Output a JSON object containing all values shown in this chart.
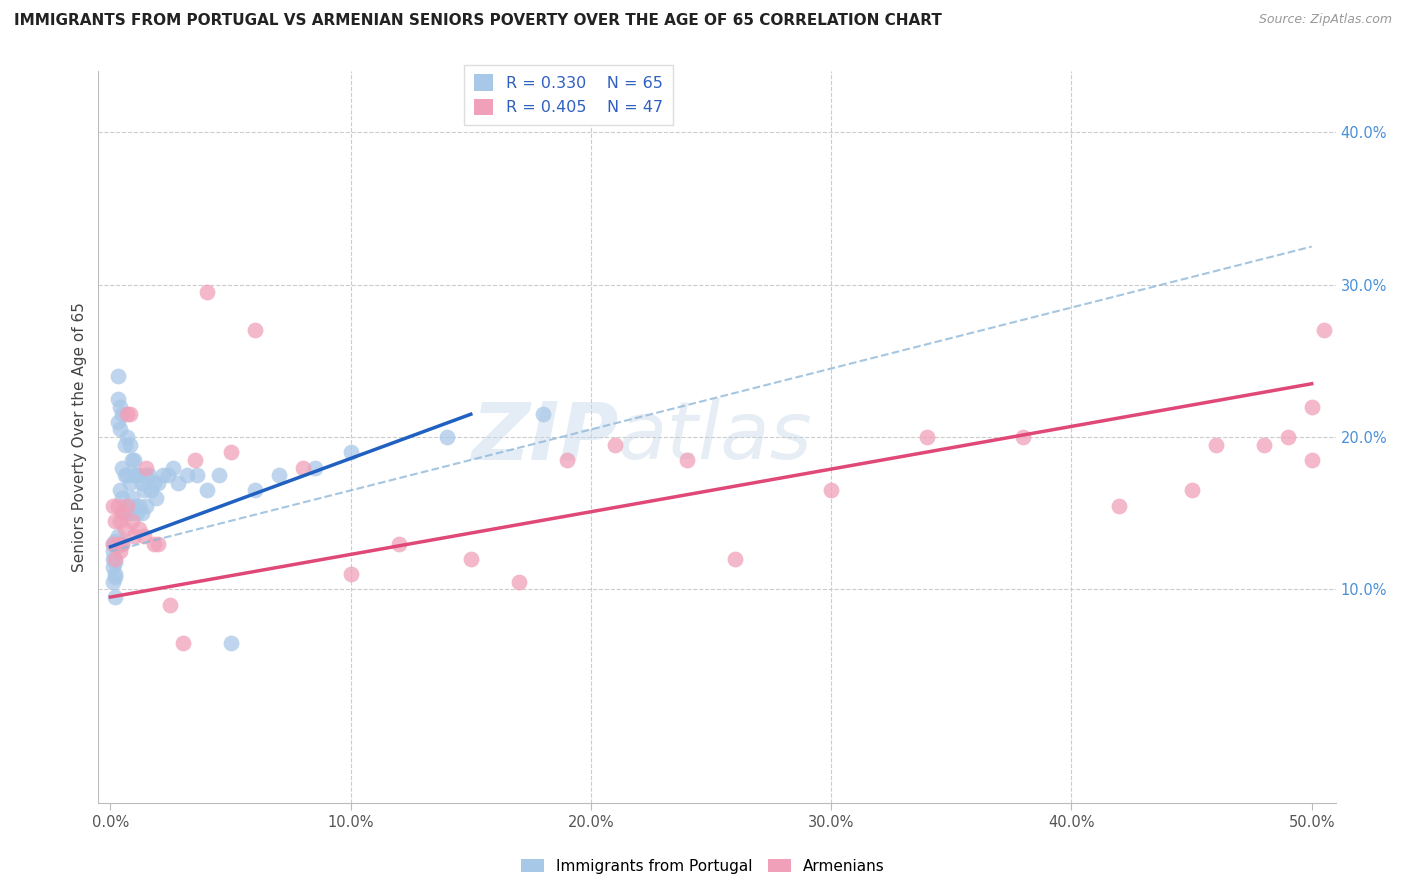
{
  "title": "IMMIGRANTS FROM PORTUGAL VS ARMENIAN SENIORS POVERTY OVER THE AGE OF 65 CORRELATION CHART",
  "source": "Source: ZipAtlas.com",
  "ylabel": "Seniors Poverty Over the Age of 65",
  "r_portugal": 0.33,
  "n_portugal": 65,
  "r_armenians": 0.405,
  "n_armenians": 47,
  "legend_label_1": "Immigrants from Portugal",
  "legend_label_2": "Armenians",
  "color_portugal": "#a8c8e8",
  "color_armenians": "#f0a0b8",
  "color_portugal_line": "#2060c0",
  "color_armenians_line": "#e04878",
  "color_dashed_line": "#90b8d8",
  "watermark_zip": "ZIP",
  "watermark_atlas": "atlas",
  "portugal_x": [
    0.001,
    0.001,
    0.001,
    0.001,
    0.001,
    0.002,
    0.002,
    0.002,
    0.002,
    0.002,
    0.003,
    0.003,
    0.003,
    0.003,
    0.004,
    0.004,
    0.004,
    0.004,
    0.005,
    0.005,
    0.005,
    0.005,
    0.006,
    0.006,
    0.006,
    0.007,
    0.007,
    0.007,
    0.008,
    0.008,
    0.008,
    0.009,
    0.009,
    0.01,
    0.01,
    0.01,
    0.011,
    0.011,
    0.012,
    0.012,
    0.013,
    0.013,
    0.014,
    0.015,
    0.015,
    0.016,
    0.017,
    0.018,
    0.019,
    0.02,
    0.022,
    0.024,
    0.026,
    0.028,
    0.032,
    0.036,
    0.04,
    0.045,
    0.05,
    0.06,
    0.07,
    0.085,
    0.1,
    0.14,
    0.18
  ],
  "portugal_y": [
    0.13,
    0.12,
    0.115,
    0.125,
    0.105,
    0.132,
    0.118,
    0.11,
    0.108,
    0.095,
    0.24,
    0.225,
    0.21,
    0.135,
    0.22,
    0.205,
    0.165,
    0.13,
    0.215,
    0.18,
    0.16,
    0.13,
    0.195,
    0.175,
    0.15,
    0.2,
    0.175,
    0.155,
    0.195,
    0.17,
    0.15,
    0.185,
    0.16,
    0.185,
    0.175,
    0.155,
    0.175,
    0.15,
    0.175,
    0.155,
    0.17,
    0.15,
    0.165,
    0.175,
    0.155,
    0.175,
    0.165,
    0.17,
    0.16,
    0.17,
    0.175,
    0.175,
    0.18,
    0.17,
    0.175,
    0.175,
    0.165,
    0.175,
    0.065,
    0.165,
    0.175,
    0.18,
    0.19,
    0.2,
    0.215
  ],
  "armenians_x": [
    0.001,
    0.001,
    0.002,
    0.002,
    0.003,
    0.003,
    0.004,
    0.004,
    0.005,
    0.005,
    0.006,
    0.007,
    0.007,
    0.008,
    0.009,
    0.01,
    0.012,
    0.014,
    0.015,
    0.018,
    0.02,
    0.025,
    0.03,
    0.035,
    0.04,
    0.05,
    0.06,
    0.08,
    0.1,
    0.12,
    0.15,
    0.17,
    0.19,
    0.21,
    0.24,
    0.26,
    0.3,
    0.34,
    0.38,
    0.42,
    0.45,
    0.46,
    0.48,
    0.49,
    0.5,
    0.5,
    0.505
  ],
  "armenians_y": [
    0.155,
    0.13,
    0.145,
    0.12,
    0.155,
    0.13,
    0.145,
    0.125,
    0.15,
    0.13,
    0.14,
    0.215,
    0.155,
    0.215,
    0.145,
    0.135,
    0.14,
    0.135,
    0.18,
    0.13,
    0.13,
    0.09,
    0.065,
    0.185,
    0.295,
    0.19,
    0.27,
    0.18,
    0.11,
    0.13,
    0.12,
    0.105,
    0.185,
    0.195,
    0.185,
    0.12,
    0.165,
    0.2,
    0.2,
    0.155,
    0.165,
    0.195,
    0.195,
    0.2,
    0.185,
    0.22,
    0.27
  ],
  "xlim": [
    -0.005,
    0.51
  ],
  "ylim": [
    -0.04,
    0.44
  ],
  "ytick_vals": [
    0.1,
    0.2,
    0.3,
    0.4
  ],
  "xtick_vals": [
    0.0,
    0.1,
    0.2,
    0.3,
    0.4,
    0.5
  ],
  "portugal_line_x": [
    0.0,
    0.15
  ],
  "portugal_line_y": [
    0.128,
    0.215
  ],
  "armenian_line_x": [
    0.0,
    0.5
  ],
  "armenian_line_y": [
    0.095,
    0.235
  ],
  "dashed_line_x": [
    0.0,
    0.5
  ],
  "dashed_line_y": [
    0.125,
    0.325
  ]
}
